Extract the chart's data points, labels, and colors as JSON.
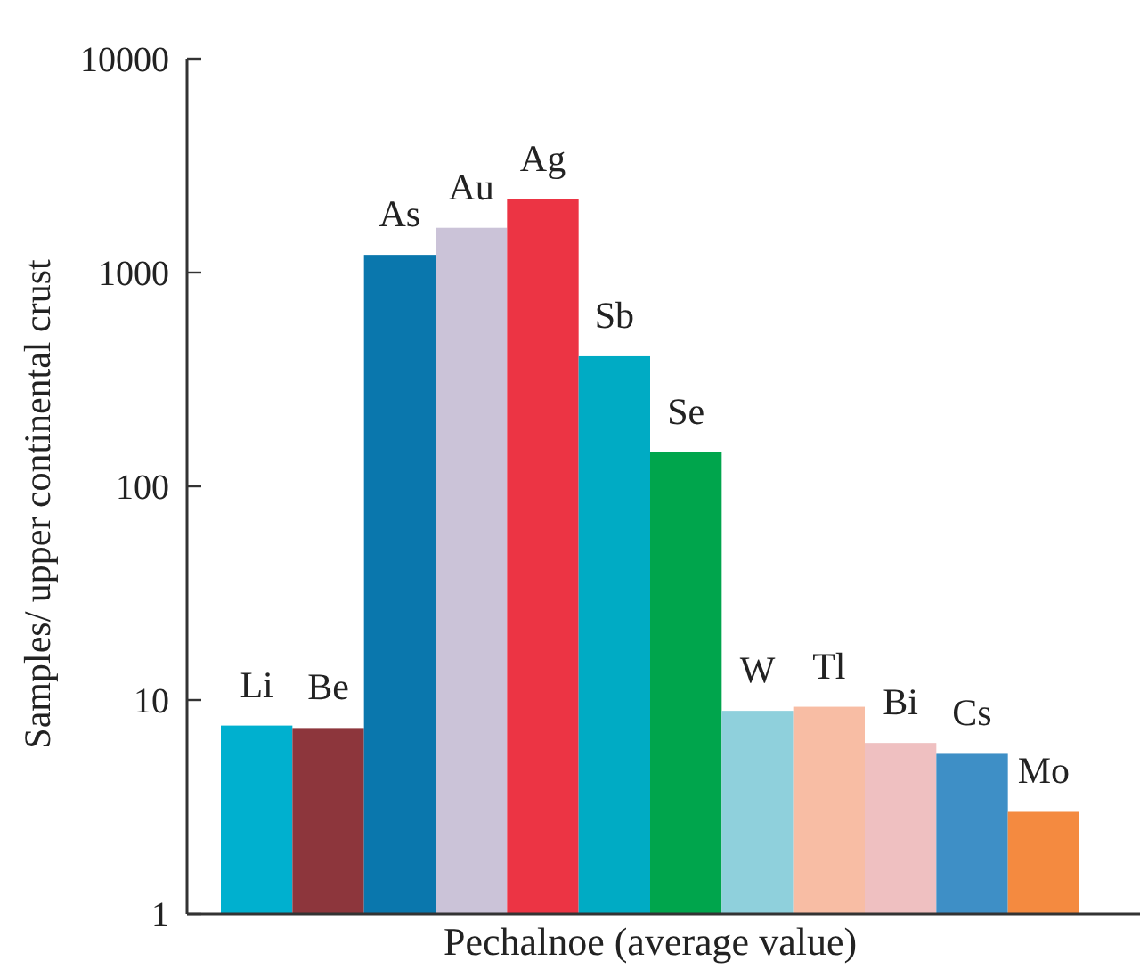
{
  "chart_data": {
    "type": "bar",
    "xlabel": "Pechalnoe (average value)",
    "ylabel": "Samples/ upper continental crust",
    "log": true,
    "categories": [
      "Li",
      "Be",
      "As",
      "Au",
      "Ag",
      "Sb",
      "Se",
      "W",
      "Tl",
      "Bi",
      "Cs",
      "Mo"
    ],
    "values": [
      7.6,
      7.4,
      1210,
      1620,
      2200,
      406,
      144,
      8.9,
      9.3,
      6.3,
      5.6,
      3.0
    ],
    "colors": [
      "#00b0cf",
      "#8d363c",
      "#0a77ad",
      "#cbc3d8",
      "#ec3444",
      "#00abc4",
      "#00a54c",
      "#8fd0dc",
      "#f8bda4",
      "#efc0c1",
      "#3e8fc6",
      "#f48a40"
    ],
    "ylim": [
      1,
      10000
    ],
    "yticks": [
      1,
      10,
      100,
      1000,
      10000
    ]
  }
}
